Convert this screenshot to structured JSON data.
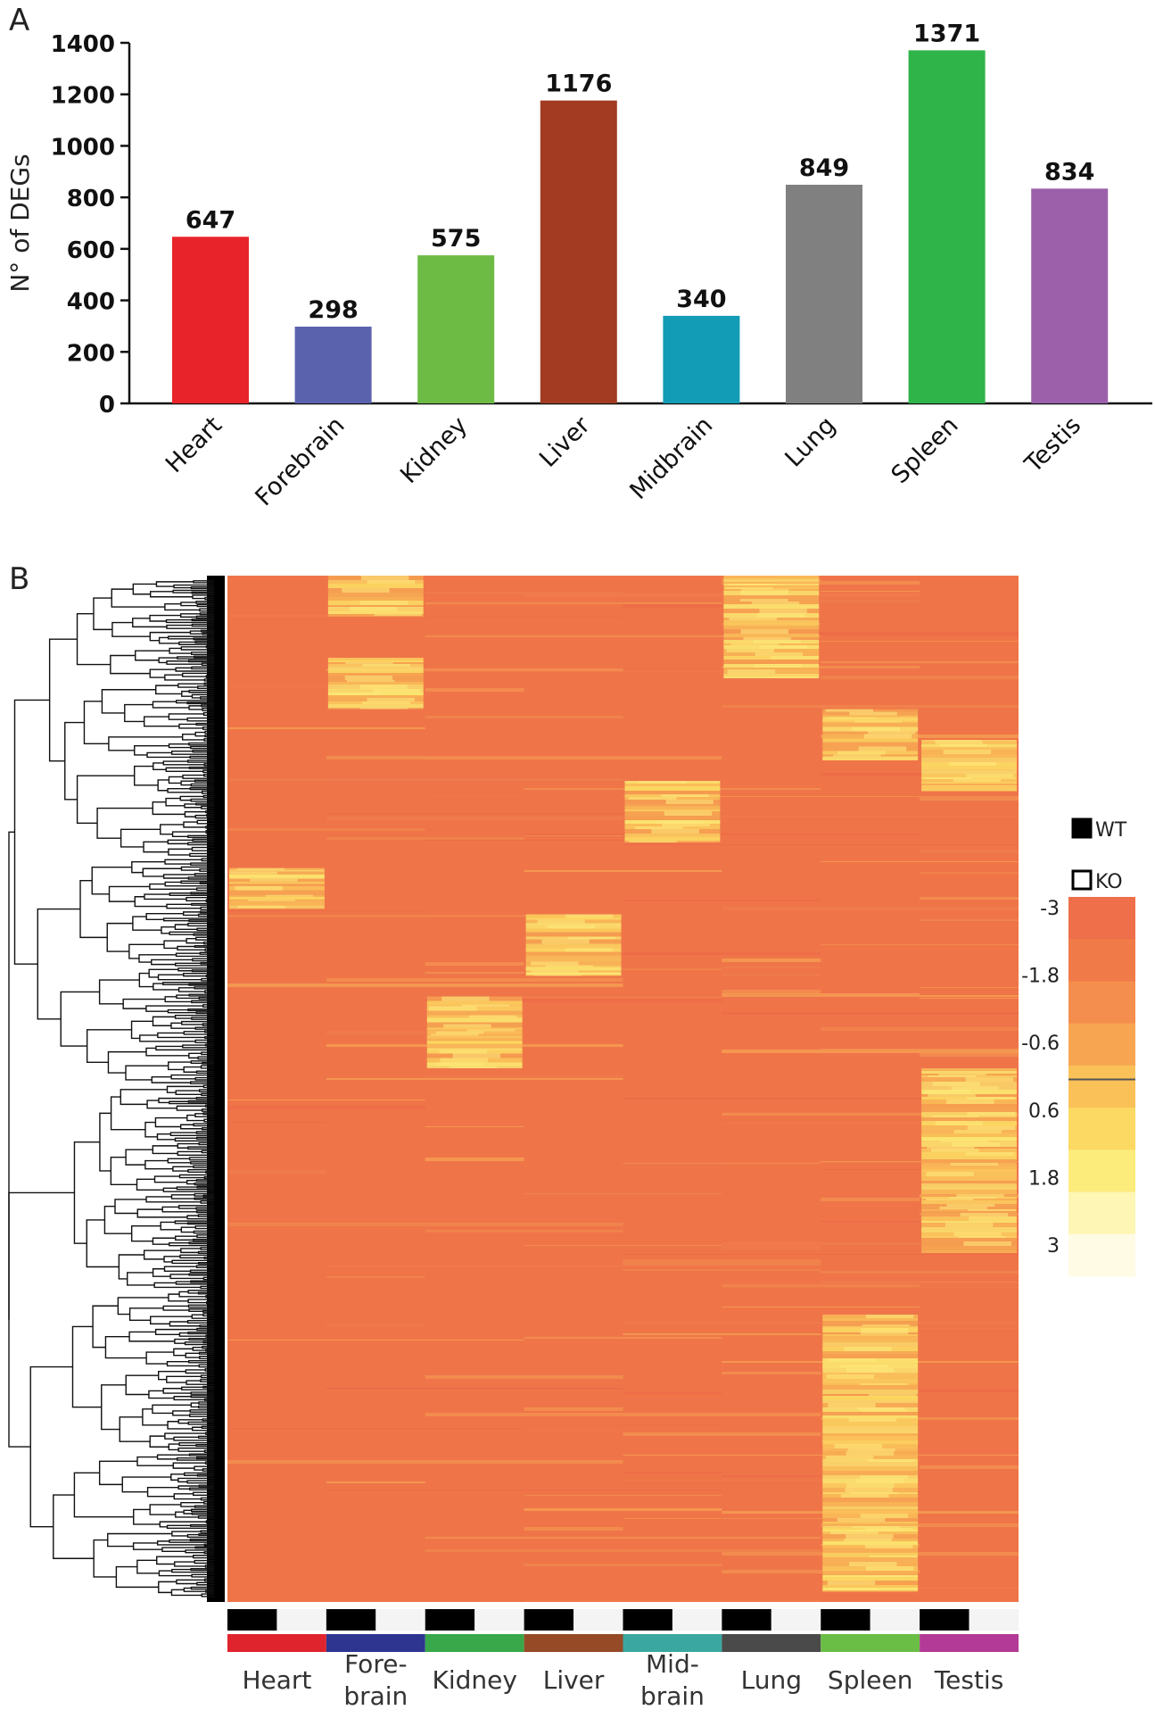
{
  "panels": {
    "a_label": "A",
    "b_label": "B"
  },
  "chart_data": [
    {
      "type": "bar",
      "panel": "A",
      "ylabel": "N° of DEGs",
      "xlabel": "",
      "ylim": [
        0,
        1400
      ],
      "yticks": [
        0,
        200,
        400,
        600,
        800,
        1000,
        1200,
        1400
      ],
      "categories": [
        "Heart",
        "Forebrain",
        "Kidney",
        "Liver",
        "Midbrain",
        "Lung",
        "Spleen",
        "Testis"
      ],
      "values": [
        647,
        298,
        575,
        1176,
        340,
        849,
        1371,
        834
      ],
      "data_labels": [
        "647",
        "298",
        "575",
        "1176",
        "340",
        "849",
        "1371",
        "834"
      ],
      "colors": [
        "#e8232a",
        "#5b62ad",
        "#6dbb45",
        "#a23b22",
        "#129cb5",
        "#808080",
        "#2fb44a",
        "#9c60aa"
      ],
      "grid": false
    },
    {
      "type": "heatmap",
      "panel": "B",
      "row_dendrogram": true,
      "tissue_labels": [
        "Heart",
        "Fore-\nbrain",
        "Kidney",
        "Liver",
        "Mid-\nbrain",
        "Lung",
        "Spleen",
        "Testis"
      ],
      "tissue_colors": [
        "#e0242d",
        "#2e3591",
        "#38a84a",
        "#964a26",
        "#3aa8a0",
        "#4a4a4a",
        "#6abd45",
        "#b33a96"
      ],
      "genotype_legend": [
        {
          "label": "WT",
          "fill": "#000000"
        },
        {
          "label": "KO",
          "fill": "#ffffff"
        }
      ],
      "color_scale": {
        "ticks": [
          "-3",
          "-1.8",
          "-0.6",
          "0.6",
          "1.8",
          "3"
        ],
        "range": [
          -3,
          3
        ],
        "colors": [
          "#ee6f49",
          "#f07a48",
          "#f48e4e",
          "#f8a552",
          "#fbc159",
          "#fcd963",
          "#fbec7c",
          "#fdf6b4",
          "#fffbe5"
        ]
      },
      "clusters": [
        {
          "tissue": "Heart",
          "genotype": "both",
          "rows": [
            0.285,
            0.325
          ]
        },
        {
          "tissue": "Fore-brain",
          "genotype": "both",
          "rows": [
            0.0,
            0.04
          ]
        },
        {
          "tissue": "Fore-brain",
          "genotype": "both",
          "rows": [
            0.08,
            0.13
          ]
        },
        {
          "tissue": "Kidney",
          "genotype": "both",
          "rows": [
            0.41,
            0.48
          ]
        },
        {
          "tissue": "Liver",
          "genotype": "both",
          "rows": [
            0.33,
            0.39
          ]
        },
        {
          "tissue": "Mid-brain",
          "genotype": "both",
          "rows": [
            0.2,
            0.26
          ]
        },
        {
          "tissue": "Lung",
          "genotype": "both",
          "rows": [
            0.0,
            0.1
          ]
        },
        {
          "tissue": "Spleen",
          "genotype": "both",
          "rows": [
            0.13,
            0.18
          ]
        },
        {
          "tissue": "Spleen",
          "genotype": "both",
          "rows": [
            0.72,
            0.99
          ]
        },
        {
          "tissue": "Testis",
          "genotype": "both",
          "rows": [
            0.16,
            0.21
          ]
        },
        {
          "tissue": "Testis",
          "genotype": "both",
          "rows": [
            0.48,
            0.66
          ]
        }
      ]
    }
  ]
}
